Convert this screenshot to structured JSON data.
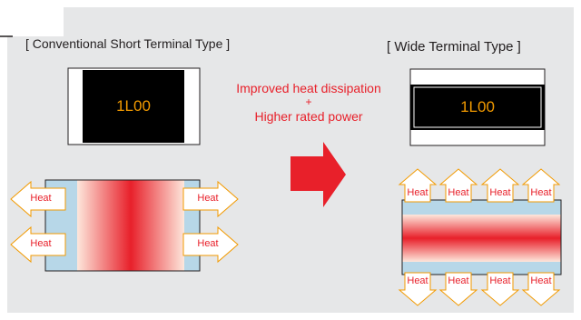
{
  "left": {
    "title": "[ Conventional Short Terminal Type ]",
    "chip_code": "1L00",
    "heat_labels": [
      "Heat",
      "Heat",
      "Heat",
      "Heat"
    ]
  },
  "right": {
    "title": "[ Wide Terminal Type ]",
    "chip_code": "1L00",
    "heat_labels": [
      "Heat",
      "Heat",
      "Heat",
      "Heat",
      "Heat",
      "Heat",
      "Heat",
      "Heat"
    ]
  },
  "center": {
    "line1": "Improved heat dissipation",
    "plus": "+",
    "line2": "Higher rated power"
  },
  "colors": {
    "panel_bg": "#e6e7e8",
    "accent_red": "#e8202a",
    "terminal_blue": "#b7d7e8",
    "chip_black": "#000000",
    "chip_text": "#f29a00"
  }
}
